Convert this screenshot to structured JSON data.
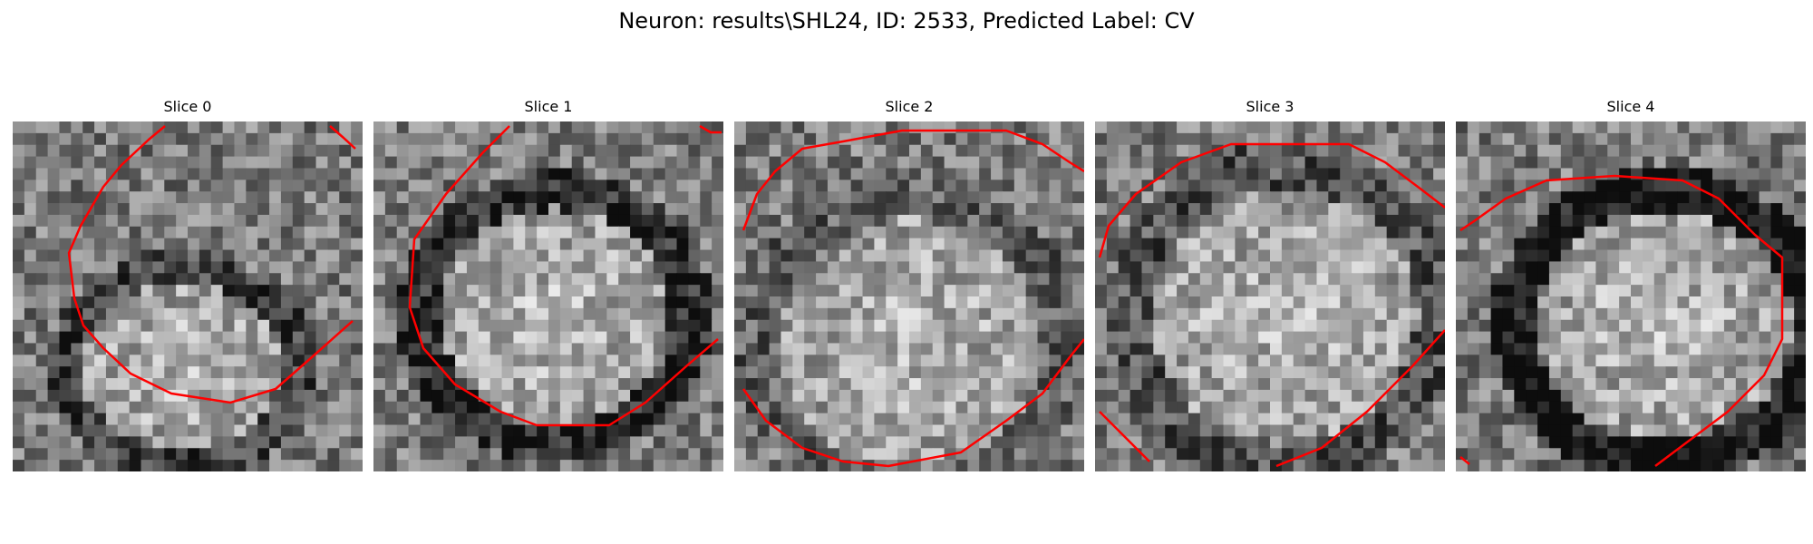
{
  "figure": {
    "title": "Neuron: results\\SHL24, ID: 2533, Predicted Label: CV"
  },
  "panels": [
    {
      "title": "Slice 0"
    },
    {
      "title": "Slice 1"
    },
    {
      "title": "Slice 2"
    },
    {
      "title": "Slice 3"
    },
    {
      "title": "Slice 4"
    }
  ],
  "colors": {
    "contour": "#ff0000",
    "background": "#ffffff"
  }
}
